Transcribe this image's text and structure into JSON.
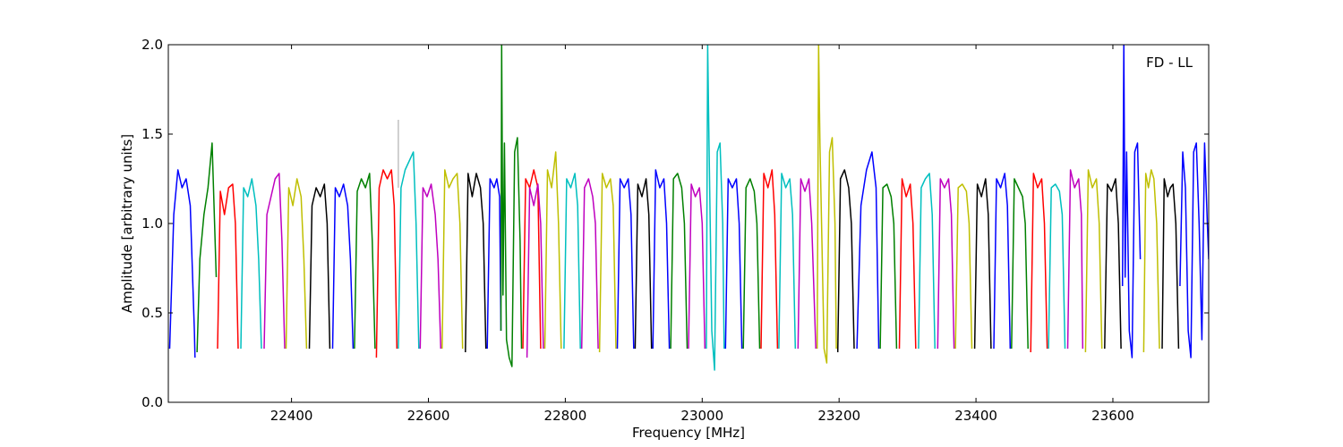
{
  "chart_data": {
    "type": "line",
    "title": "",
    "xlabel": "Frequency [MHz]",
    "ylabel": "Amplitude [arbitrary units]",
    "xlim": [
      22220,
      23740
    ],
    "ylim": [
      0.0,
      2.0
    ],
    "xticks": [
      22400,
      22600,
      22800,
      23000,
      23200,
      23400,
      23600
    ],
    "xtick_labels": [
      "22400",
      "22600",
      "22800",
      "23000",
      "23200",
      "23400",
      "23600"
    ],
    "yticks": [
      0.0,
      0.5,
      1.0,
      1.5,
      2.0
    ],
    "ytick_labels": [
      "0.0",
      "0.5",
      "1.0",
      "1.5",
      "2.0"
    ],
    "grid": false,
    "annotation": "FD - LL",
    "palette": [
      "#0000ff",
      "#008000",
      "#ff0000",
      "#00bfbf",
      "#bf00bf",
      "#bfbf00",
      "#000000"
    ],
    "series": [
      {
        "color": "#0000ff",
        "x": [
          22222,
          22228,
          22234,
          22240,
          22246,
          22252,
          22258,
          22259
        ],
        "y": [
          0.3,
          1.05,
          1.3,
          1.2,
          1.25,
          1.1,
          0.4,
          0.25
        ]
      },
      {
        "color": "#008000",
        "x": [
          22262,
          22266,
          22272,
          22278,
          22284,
          22290
        ],
        "y": [
          0.28,
          0.8,
          1.05,
          1.2,
          1.45,
          0.7
        ]
      },
      {
        "color": "#ff0000",
        "x": [
          22292,
          22296,
          22302,
          22308,
          22314,
          22318,
          22322
        ],
        "y": [
          0.3,
          1.18,
          1.05,
          1.2,
          1.22,
          1.0,
          0.3
        ]
      },
      {
        "color": "#00bfbf",
        "x": [
          22326,
          22330,
          22336,
          22342,
          22348,
          22352,
          22356
        ],
        "y": [
          0.3,
          1.2,
          1.15,
          1.25,
          1.1,
          0.8,
          0.3
        ]
      },
      {
        "color": "#bf00bf",
        "x": [
          22360,
          22364,
          22370,
          22376,
          22382,
          22386,
          22390
        ],
        "y": [
          0.3,
          1.05,
          1.15,
          1.25,
          1.28,
          0.9,
          0.3
        ]
      },
      {
        "color": "#bfbf00",
        "x": [
          22392,
          22396,
          22402,
          22408,
          22414,
          22418,
          22422
        ],
        "y": [
          0.3,
          1.2,
          1.1,
          1.25,
          1.15,
          0.8,
          0.3
        ]
      },
      {
        "color": "#000000",
        "x": [
          22426,
          22430,
          22436,
          22442,
          22448,
          22452,
          22456
        ],
        "y": [
          0.3,
          1.1,
          1.2,
          1.15,
          1.22,
          1.0,
          0.3
        ]
      },
      {
        "color": "#0000ff",
        "x": [
          22460,
          22464,
          22470,
          22476,
          22482,
          22486,
          22490
        ],
        "y": [
          0.3,
          1.2,
          1.15,
          1.22,
          1.1,
          0.8,
          0.3
        ]
      },
      {
        "color": "#008000",
        "x": [
          22492,
          22496,
          22502,
          22508,
          22514,
          22518,
          22522
        ],
        "y": [
          0.3,
          1.18,
          1.25,
          1.2,
          1.28,
          0.9,
          0.3
        ]
      },
      {
        "color": "#ff0000",
        "x": [
          22524,
          22528,
          22534,
          22540,
          22546,
          22550,
          22554
        ],
        "y": [
          0.25,
          1.2,
          1.3,
          1.25,
          1.3,
          1.1,
          0.3
        ]
      },
      {
        "color": "#00bfbf",
        "x": [
          22556,
          22560,
          22566,
          22572,
          22578,
          22582,
          22586
        ],
        "y": [
          0.3,
          1.2,
          1.3,
          1.35,
          1.4,
          1.0,
          0.3
        ]
      },
      {
        "color": "#bf00bf",
        "x": [
          22588,
          22592,
          22598,
          22604,
          22610,
          22614,
          22618
        ],
        "y": [
          0.3,
          1.2,
          1.15,
          1.22,
          1.05,
          0.8,
          0.3
        ]
      },
      {
        "color": "#bfbf00",
        "x": [
          22620,
          22624,
          22630,
          22636,
          22642,
          22646,
          22650
        ],
        "y": [
          0.3,
          1.3,
          1.2,
          1.25,
          1.28,
          1.0,
          0.3
        ]
      },
      {
        "color": "#000000",
        "x": [
          22654,
          22658,
          22664,
          22670,
          22676,
          22680,
          22684
        ],
        "y": [
          0.28,
          1.28,
          1.15,
          1.28,
          1.2,
          1.0,
          0.3
        ]
      },
      {
        "color": "#0000ff",
        "x": [
          22686,
          22690,
          22696,
          22700,
          22704,
          22706
        ],
        "y": [
          0.3,
          1.25,
          1.2,
          1.25,
          1.15,
          0.4
        ]
      },
      {
        "color": "#008000",
        "x": [
          22706,
          22707,
          22709,
          22711,
          22714,
          22718,
          22722,
          22726,
          22730,
          22734,
          22736
        ],
        "y": [
          0.4,
          2.0,
          0.6,
          1.45,
          0.35,
          0.25,
          0.2,
          1.4,
          1.48,
          0.9,
          0.3
        ]
      },
      {
        "color": "#ff0000",
        "x": [
          22738,
          22742,
          22748,
          22754,
          22760,
          22764
        ],
        "y": [
          0.3,
          1.25,
          1.2,
          1.3,
          1.2,
          0.3
        ]
      },
      {
        "color": "#bf00bf",
        "x": [
          22744,
          22748,
          22754,
          22760,
          22764,
          22768
        ],
        "y": [
          0.25,
          1.2,
          1.1,
          1.22,
          1.0,
          0.3
        ]
      },
      {
        "color": "#bfbf00",
        "x": [
          22770,
          22774,
          22780,
          22786,
          22790,
          22794
        ],
        "y": [
          0.3,
          1.3,
          1.2,
          1.4,
          1.0,
          0.3
        ]
      },
      {
        "color": "#00bfbf",
        "x": [
          22798,
          22802,
          22808,
          22814,
          22818,
          22822
        ],
        "y": [
          0.3,
          1.25,
          1.2,
          1.28,
          1.1,
          0.3
        ]
      },
      {
        "color": "#bf00bf",
        "x": [
          22824,
          22828,
          22834,
          22840,
          22844,
          22848
        ],
        "y": [
          0.3,
          1.2,
          1.25,
          1.15,
          1.0,
          0.3
        ]
      },
      {
        "color": "#bfbf00",
        "x": [
          22850,
          22854,
          22860,
          22866,
          22870,
          22874
        ],
        "y": [
          0.28,
          1.28,
          1.2,
          1.25,
          1.1,
          0.3
        ]
      },
      {
        "color": "#0000ff",
        "x": [
          22876,
          22880,
          22886,
          22892,
          22896,
          22900
        ],
        "y": [
          0.3,
          1.25,
          1.2,
          1.25,
          1.05,
          0.3
        ]
      },
      {
        "color": "#000000",
        "x": [
          22902,
          22906,
          22912,
          22918,
          22922,
          22926
        ],
        "y": [
          0.3,
          1.22,
          1.15,
          1.25,
          1.05,
          0.3
        ]
      },
      {
        "color": "#0000ff",
        "x": [
          22928,
          22932,
          22938,
          22944,
          22948,
          22952
        ],
        "y": [
          0.3,
          1.3,
          1.2,
          1.25,
          1.0,
          0.3
        ]
      },
      {
        "color": "#008000",
        "x": [
          22954,
          22958,
          22964,
          22970,
          22974,
          22978
        ],
        "y": [
          0.3,
          1.25,
          1.28,
          1.2,
          1.0,
          0.3
        ]
      },
      {
        "color": "#bf00bf",
        "x": [
          22980,
          22984,
          22990,
          22996,
          23000,
          23004
        ],
        "y": [
          0.3,
          1.22,
          1.15,
          1.2,
          1.0,
          0.3
        ]
      },
      {
        "color": "#00bfbf",
        "x": [
          23006,
          23008,
          23010,
          23014,
          23018,
          23022,
          23026,
          23030,
          23032
        ],
        "y": [
          0.3,
          2.0,
          1.45,
          0.4,
          0.18,
          1.4,
          1.45,
          1.0,
          0.3
        ]
      },
      {
        "color": "#0000ff",
        "x": [
          23034,
          23038,
          23044,
          23050,
          23054,
          23058
        ],
        "y": [
          0.3,
          1.25,
          1.2,
          1.25,
          1.0,
          0.3
        ]
      },
      {
        "color": "#008000",
        "x": [
          23060,
          23064,
          23070,
          23076,
          23080,
          23084
        ],
        "y": [
          0.3,
          1.2,
          1.25,
          1.18,
          1.0,
          0.3
        ]
      },
      {
        "color": "#ff0000",
        "x": [
          23086,
          23090,
          23096,
          23102,
          23106,
          23110
        ],
        "y": [
          0.3,
          1.28,
          1.2,
          1.3,
          1.05,
          0.3
        ]
      },
      {
        "color": "#00bfbf",
        "x": [
          23112,
          23116,
          23122,
          23128,
          23132,
          23136
        ],
        "y": [
          0.3,
          1.28,
          1.2,
          1.25,
          1.05,
          0.3
        ]
      },
      {
        "color": "#bf00bf",
        "x": [
          23140,
          23144,
          23150,
          23156,
          23160,
          23166
        ],
        "y": [
          0.3,
          1.25,
          1.18,
          1.25,
          1.0,
          0.3
        ]
      },
      {
        "color": "#bfbf00",
        "x": [
          23168,
          23170,
          23172,
          23178,
          23182,
          23186,
          23190,
          23194,
          23196
        ],
        "y": [
          0.3,
          2.0,
          1.45,
          0.3,
          0.22,
          1.4,
          1.48,
          1.0,
          0.3
        ]
      },
      {
        "color": "#000000",
        "x": [
          23198,
          23202,
          23208,
          23214,
          23218,
          23222
        ],
        "y": [
          0.28,
          1.25,
          1.3,
          1.2,
          1.0,
          0.3
        ]
      },
      {
        "color": "#0000ff",
        "x": [
          23226,
          23232,
          23240,
          23248,
          23254,
          23258
        ],
        "y": [
          0.3,
          1.1,
          1.3,
          1.4,
          1.2,
          0.3
        ]
      },
      {
        "color": "#008000",
        "x": [
          23260,
          23264,
          23270,
          23276,
          23280,
          23284
        ],
        "y": [
          0.3,
          1.2,
          1.22,
          1.15,
          1.0,
          0.3
        ]
      },
      {
        "color": "#ff0000",
        "x": [
          23288,
          23292,
          23298,
          23304,
          23308,
          23312
        ],
        "y": [
          0.3,
          1.25,
          1.15,
          1.22,
          1.0,
          0.3
        ]
      },
      {
        "color": "#00bfbf",
        "x": [
          23316,
          23320,
          23326,
          23332,
          23336,
          23340
        ],
        "y": [
          0.3,
          1.2,
          1.25,
          1.28,
          1.05,
          0.3
        ]
      },
      {
        "color": "#bf00bf",
        "x": [
          23344,
          23348,
          23354,
          23360,
          23364,
          23368
        ],
        "y": [
          0.3,
          1.25,
          1.2,
          1.25,
          1.05,
          0.3
        ]
      },
      {
        "color": "#bfbf00",
        "x": [
          23370,
          23374,
          23380,
          23386,
          23390,
          23394
        ],
        "y": [
          0.3,
          1.2,
          1.22,
          1.18,
          1.0,
          0.3
        ]
      },
      {
        "color": "#000000",
        "x": [
          23398,
          23402,
          23408,
          23414,
          23418,
          23422
        ],
        "y": [
          0.3,
          1.22,
          1.15,
          1.25,
          1.05,
          0.3
        ]
      },
      {
        "color": "#0000ff",
        "x": [
          23426,
          23430,
          23436,
          23442,
          23446,
          23450
        ],
        "y": [
          0.3,
          1.25,
          1.2,
          1.28,
          1.1,
          0.3
        ]
      },
      {
        "color": "#008000",
        "x": [
          23452,
          23456,
          23462,
          23468,
          23472,
          23476
        ],
        "y": [
          0.3,
          1.25,
          1.2,
          1.15,
          1.0,
          0.3
        ]
      },
      {
        "color": "#ff0000",
        "x": [
          23480,
          23484,
          23490,
          23496,
          23500,
          23504
        ],
        "y": [
          0.28,
          1.28,
          1.2,
          1.25,
          1.0,
          0.3
        ]
      },
      {
        "color": "#00bfbf",
        "x": [
          23506,
          23510,
          23516,
          23522,
          23526,
          23530
        ],
        "y": [
          0.3,
          1.2,
          1.22,
          1.18,
          1.05,
          0.3
        ]
      },
      {
        "color": "#bf00bf",
        "x": [
          23534,
          23538,
          23544,
          23550,
          23554,
          23556
        ],
        "y": [
          0.3,
          1.3,
          1.2,
          1.25,
          1.05,
          0.3
        ]
      },
      {
        "color": "#bfbf00",
        "x": [
          23560,
          23564,
          23570,
          23576,
          23580,
          23584
        ],
        "y": [
          0.28,
          1.3,
          1.2,
          1.25,
          1.0,
          0.3
        ]
      },
      {
        "color": "#000000",
        "x": [
          23588,
          23592,
          23598,
          23604,
          23608,
          23612
        ],
        "y": [
          0.3,
          1.22,
          1.18,
          1.25,
          1.0,
          0.3
        ]
      },
      {
        "color": "#0000ff",
        "x": [
          23614,
          23616,
          23618,
          23620,
          23624,
          23628,
          23632,
          23636,
          23640
        ],
        "y": [
          0.65,
          2.0,
          0.7,
          1.4,
          0.4,
          0.25,
          1.4,
          1.45,
          0.8
        ]
      },
      {
        "color": "#bfbf00",
        "x": [
          23645,
          23648,
          23652,
          23656,
          23660,
          23664,
          23668
        ],
        "y": [
          0.28,
          1.28,
          1.2,
          1.3,
          1.25,
          1.0,
          0.3
        ]
      },
      {
        "color": "#000000",
        "x": [
          23672,
          23675,
          23680,
          23684,
          23688,
          23692,
          23696
        ],
        "y": [
          0.3,
          1.25,
          1.15,
          1.2,
          1.22,
          1.0,
          0.3
        ]
      },
      {
        "color": "#0000ff",
        "x": [
          23698,
          23702,
          23706,
          23710,
          23714,
          23718,
          23722,
          23726,
          23730,
          23734,
          23738,
          23740
        ],
        "y": [
          0.65,
          1.4,
          1.2,
          0.4,
          0.25,
          1.4,
          1.45,
          1.0,
          0.35,
          1.45,
          1.0,
          0.8
        ]
      },
      {
        "color": "#c0c0c0",
        "x": [
          22556,
          22556.1
        ],
        "y": [
          1.58,
          1.2
        ]
      }
    ]
  }
}
